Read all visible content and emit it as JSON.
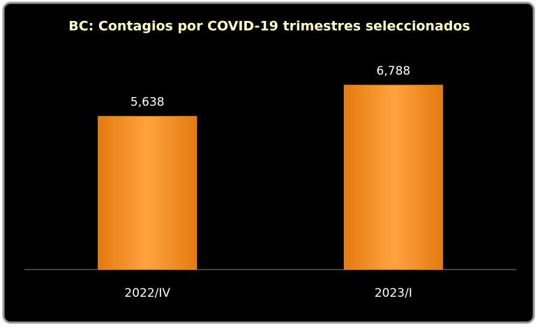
{
  "chart_data": {
    "type": "bar",
    "title": "BC: Contagios por COVID-19 trimestres seleccionados",
    "categories": [
      "2022/IV",
      "2023/I"
    ],
    "values": [
      5638,
      6788
    ],
    "value_labels": [
      "5,638",
      "6,788"
    ],
    "color": "#f7931e"
  }
}
